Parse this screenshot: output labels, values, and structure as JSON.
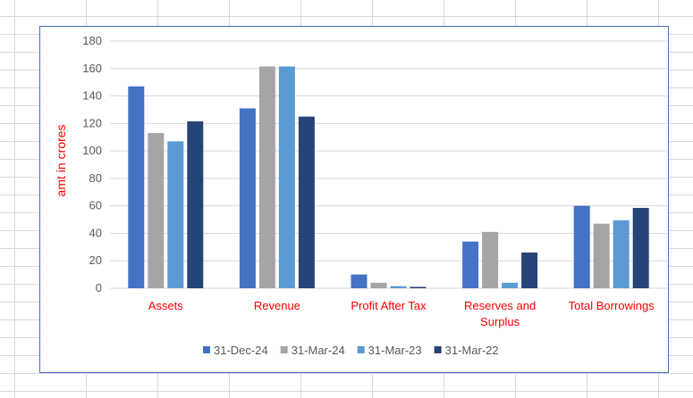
{
  "chart_data": {
    "type": "bar",
    "title": "",
    "xlabel": "",
    "ylabel": "amt in crores",
    "ylim": [
      0,
      180
    ],
    "yticks": [
      0,
      20,
      40,
      60,
      80,
      100,
      120,
      140,
      160,
      180
    ],
    "grid": true,
    "legend_position": "bottom",
    "categories": [
      "Assets",
      "Revenue",
      "Profit After Tax",
      "Reserves and Surplus",
      "Total Borrowings"
    ],
    "series": [
      {
        "name": "31-Dec-24",
        "color": "#4472c4",
        "values": [
          147,
          131,
          10,
          34,
          60
        ]
      },
      {
        "name": "31-Mar-24",
        "color": "#a5a5a5",
        "values": [
          113,
          161.5,
          4,
          41,
          47
        ]
      },
      {
        "name": "31-Mar-23",
        "color": "#5b9bd5",
        "values": [
          107,
          161.5,
          1.5,
          4,
          49.5
        ]
      },
      {
        "name": "31-Mar-22",
        "color": "#264478",
        "values": [
          121.5,
          125,
          1,
          26,
          58.5
        ]
      }
    ]
  }
}
